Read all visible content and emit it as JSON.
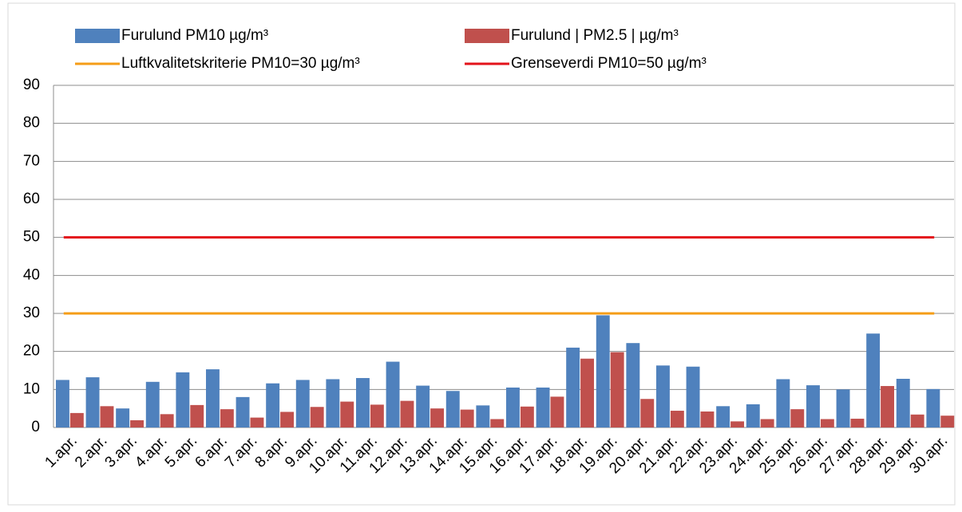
{
  "chart_data": {
    "type": "bar",
    "categories": [
      "1.apr.",
      "2.apr.",
      "3.apr.",
      "4.apr.",
      "5.apr.",
      "6.apr.",
      "7.apr.",
      "8.apr.",
      "9.apr.",
      "10.apr.",
      "11.apr.",
      "12.apr.",
      "13.apr.",
      "14.apr.",
      "15.apr.",
      "16.apr.",
      "17.apr.",
      "18.apr.",
      "19.apr.",
      "20.apr.",
      "21.apr.",
      "22.apr.",
      "23.apr.",
      "24.apr.",
      "25.apr.",
      "26.apr.",
      "27.apr.",
      "28.apr.",
      "29.apr.",
      "30.apr."
    ],
    "series": [
      {
        "name": "Furulund  PM10  µg/m³",
        "type": "bar",
        "color": "#4f81bd",
        "values": [
          12.5,
          13.2,
          5,
          12,
          14.5,
          15.3,
          8,
          11.6,
          12.5,
          12.7,
          13,
          17.3,
          11,
          9.6,
          5.8,
          10.5,
          10.5,
          21,
          29.5,
          22.2,
          16.3,
          16,
          5.6,
          6.1,
          12.7,
          11.1,
          10,
          24.7,
          12.8,
          10.1
        ]
      },
      {
        "name": "Furulund | PM2.5 | µg/m³",
        "type": "bar",
        "color": "#c0504d",
        "values": [
          3.8,
          5.6,
          1.9,
          3.5,
          5.9,
          4.8,
          2.6,
          4.1,
          5.4,
          6.8,
          6,
          7,
          5,
          4.7,
          2.2,
          5.5,
          8.1,
          18.1,
          19.8,
          7.5,
          4.4,
          4.2,
          1.6,
          2.2,
          4.8,
          2.2,
          2.3,
          10.9,
          3.4,
          3.1
        ]
      },
      {
        "name": "Luftkvalitetskriterie PM10=30 µg/m³",
        "type": "line",
        "color": "#f59d17",
        "values": [
          30,
          30,
          30,
          30,
          30,
          30,
          30,
          30,
          30,
          30,
          30,
          30,
          30,
          30,
          30,
          30,
          30,
          30,
          30,
          30,
          30,
          30,
          30,
          30,
          30,
          30,
          30,
          30,
          30,
          30
        ]
      },
      {
        "name": "Grenseverdi PM10=50 µg/m³",
        "type": "line",
        "color": "#e3121a",
        "values": [
          50,
          50,
          50,
          50,
          50,
          50,
          50,
          50,
          50,
          50,
          50,
          50,
          50,
          50,
          50,
          50,
          50,
          50,
          50,
          50,
          50,
          50,
          50,
          50,
          50,
          50,
          50,
          50,
          50,
          50
        ]
      }
    ],
    "ylim": [
      0,
      90
    ],
    "yticks": [
      0,
      10,
      20,
      30,
      40,
      50,
      60,
      70,
      80,
      90
    ],
    "grid": true
  }
}
